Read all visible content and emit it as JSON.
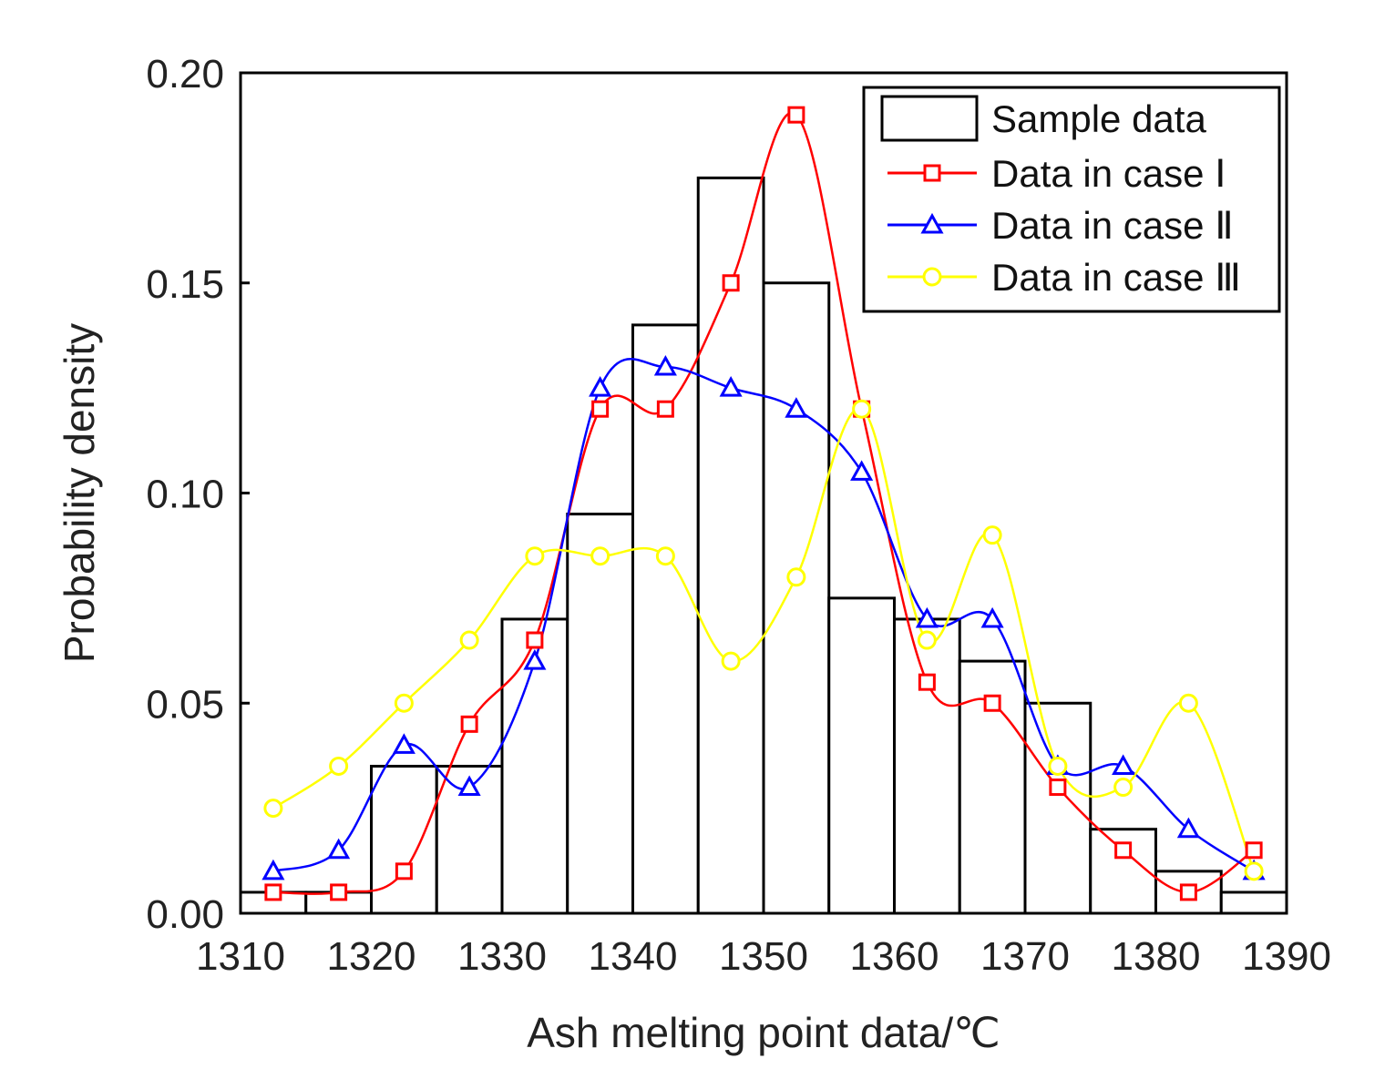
{
  "chart_data": {
    "type": "bar",
    "title": "",
    "xlabel": "Ash melting point data/℃",
    "ylabel": "Probability density",
    "xlim": [
      1310,
      1390
    ],
    "ylim": [
      0,
      0.2
    ],
    "xticks": [
      1310,
      1320,
      1330,
      1340,
      1350,
      1360,
      1370,
      1380,
      1390
    ],
    "yticks": [
      0,
      0.05,
      0.1,
      0.15,
      0.2
    ],
    "ytick_labels": [
      "0.00",
      "0.05",
      "0.10",
      "0.15",
      "0.20"
    ],
    "grid": false,
    "legend_position": "top-right",
    "histogram": {
      "name": "Sample data",
      "bins": [
        {
          "from": 1310,
          "to": 1315,
          "value": 0.005
        },
        {
          "from": 1315,
          "to": 1320,
          "value": 0.005
        },
        {
          "from": 1320,
          "to": 1325,
          "value": 0.035
        },
        {
          "from": 1325,
          "to": 1330,
          "value": 0.035
        },
        {
          "from": 1330,
          "to": 1335,
          "value": 0.07
        },
        {
          "from": 1335,
          "to": 1340,
          "value": 0.095
        },
        {
          "from": 1340,
          "to": 1345,
          "value": 0.14
        },
        {
          "from": 1345,
          "to": 1350,
          "value": 0.175
        },
        {
          "from": 1350,
          "to": 1355,
          "value": 0.15
        },
        {
          "from": 1355,
          "to": 1360,
          "value": 0.075
        },
        {
          "from": 1360,
          "to": 1365,
          "value": 0.07
        },
        {
          "from": 1365,
          "to": 1370,
          "value": 0.06
        },
        {
          "from": 1370,
          "to": 1375,
          "value": 0.05
        },
        {
          "from": 1375,
          "to": 1380,
          "value": 0.02
        },
        {
          "from": 1380,
          "to": 1385,
          "value": 0.01
        },
        {
          "from": 1385,
          "to": 1390,
          "value": 0.005
        }
      ]
    },
    "x": [
      1312.5,
      1317.5,
      1322.5,
      1327.5,
      1332.5,
      1337.5,
      1342.5,
      1347.5,
      1352.5,
      1357.5,
      1362.5,
      1367.5,
      1372.5,
      1377.5,
      1382.5,
      1387.5
    ],
    "series": [
      {
        "name": "Data in case Ⅰ",
        "color": "#ff0000",
        "marker": "square",
        "values": [
          0.005,
          0.005,
          0.01,
          0.045,
          0.065,
          0.12,
          0.12,
          0.15,
          0.19,
          0.12,
          0.055,
          0.05,
          0.03,
          0.015,
          0.005,
          0.015
        ]
      },
      {
        "name": "Data in case Ⅱ",
        "color": "#0000ff",
        "marker": "triangle",
        "values": [
          0.01,
          0.015,
          0.04,
          0.03,
          0.06,
          0.125,
          0.13,
          0.125,
          0.12,
          0.105,
          0.07,
          0.07,
          0.035,
          0.035,
          0.02,
          0.01
        ]
      },
      {
        "name": "Data in case Ⅲ",
        "color": "#ffff00",
        "marker": "circle",
        "values": [
          0.025,
          0.035,
          0.05,
          0.065,
          0.085,
          0.085,
          0.085,
          0.06,
          0.08,
          0.12,
          0.065,
          0.09,
          0.035,
          0.03,
          0.05,
          0.01
        ]
      }
    ]
  }
}
